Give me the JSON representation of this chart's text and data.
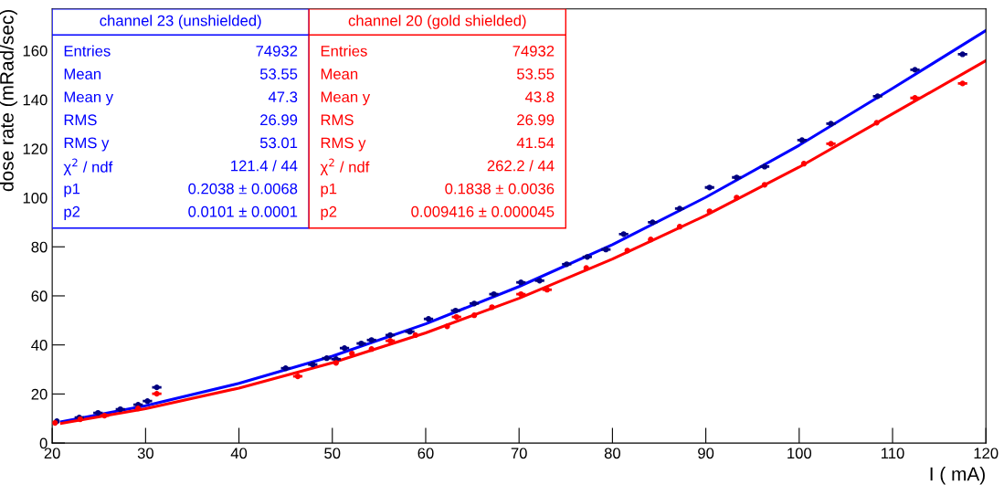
{
  "chart_data": {
    "type": "scatter",
    "xlabel": "I ( mA)",
    "ylabel": "dose rate (mRad/sec)",
    "xlim": [
      20,
      120
    ],
    "ylim": [
      0,
      177
    ],
    "xticks": [
      20,
      30,
      40,
      50,
      60,
      70,
      80,
      90,
      100,
      110,
      120
    ],
    "yticks": [
      0,
      20,
      40,
      60,
      80,
      100,
      120,
      140,
      160
    ],
    "grid": false,
    "legend": false,
    "marker": "circle",
    "series": [
      {
        "color": "#000080",
        "xerrors": [
          null,
          0.5,
          0.5,
          0.5,
          0.5,
          0.5,
          0.5,
          0.5,
          0.5,
          0.5,
          0.5,
          0.5,
          0.5,
          0.5,
          0.5,
          0.5,
          0.5,
          0.5,
          0.5,
          0.5,
          0.5,
          0.5,
          0.5,
          0.5,
          0.5,
          0.5,
          0.5,
          0.5,
          0.5,
          0.5,
          0.5,
          0.5,
          0.5,
          0.5,
          0.5,
          0.5
        ],
        "x": [
          20.5,
          22.9,
          24.9,
          27.3,
          29.2,
          30.2,
          31.2,
          45,
          47.9,
          49.4,
          50.4,
          51.3,
          53.1,
          54.2,
          56.2,
          58.3,
          60.3,
          63.2,
          65.2,
          67.3,
          70.2,
          72.2,
          75.1,
          77.3,
          79.3,
          81.2,
          84.3,
          87.2,
          90.4,
          93.3,
          96.3,
          100.3,
          103.4,
          108.4,
          112.4,
          117.5
        ],
        "values": [
          8.9,
          10.4,
          12.3,
          13.8,
          15.6,
          17.1,
          22.7,
          30.5,
          32.0,
          34.6,
          34.2,
          38.7,
          40.6,
          42.0,
          44.0,
          45.4,
          50.6,
          54.0,
          56.9,
          60.7,
          65.5,
          66.2,
          72.9,
          75.9,
          78.9,
          85.2,
          90.0,
          95.6,
          104.2,
          108.3,
          112.7,
          123.5,
          130.2,
          141.4,
          152.2,
          158.5
        ]
      },
      {
        "color": "#ff0000",
        "xerrors": [
          null,
          null,
          0.5,
          null,
          0.5,
          0.5,
          null,
          null,
          null,
          0.5,
          null,
          null,
          0.5,
          null,
          null,
          0.5,
          0.5,
          null,
          null,
          null,
          null,
          null,
          null,
          null,
          null,
          0.5,
          null,
          0.5,
          0.5
        ],
        "x": [
          20.3,
          23,
          25.6,
          29.2,
          31.2,
          46.3,
          50.4,
          52.1,
          54.2,
          56.2,
          58.9,
          62.3,
          63.3,
          65.2,
          67.1,
          70.2,
          73,
          77.2,
          81.6,
          84.1,
          87.2,
          90.4,
          93.3,
          96.3,
          100.5,
          103.4,
          108.3,
          112.4,
          117.5
        ],
        "values": [
          8.2,
          9.7,
          11.2,
          14.1,
          20.1,
          27.2,
          32.7,
          36.5,
          38.3,
          41.7,
          44.0,
          47.6,
          51.4,
          52.1,
          55.4,
          60.7,
          62.5,
          71.4,
          78.5,
          83.0,
          88.2,
          94.5,
          100.1,
          105.3,
          113.9,
          122.0,
          130.6,
          140.7,
          146.6
        ]
      },
      {
        "type": "line",
        "marker": "none",
        "color": "#0000ff",
        "x": [
          21,
          30,
          40,
          50,
          60,
          70,
          80,
          90,
          100,
          110,
          120
        ],
        "values": [
          8.7,
          15.2,
          24.3,
          35.4,
          48.6,
          63.8,
          80.9,
          100.2,
          121.4,
          144.6,
          168.2
        ]
      },
      {
        "type": "line",
        "marker": "none",
        "color": "#ff0000",
        "x": [
          21,
          30,
          40,
          50,
          60,
          70,
          80,
          90,
          100,
          110,
          120
        ],
        "values": [
          8.0,
          14.0,
          22.4,
          32.7,
          44.9,
          59.0,
          75.0,
          92.8,
          112.5,
          134.2,
          155.9
        ]
      }
    ],
    "annotations": [
      "channel 23 (unshielded)",
      "Entries",
      "74932",
      "Mean",
      "53.55",
      "Mean y",
      "47.3",
      "RMS",
      "26.99",
      "RMS y",
      "53.01",
      "χ$^{2}$ / ndf",
      "121.4 / 44",
      "p1",
      "0.2038 ± 0.0068",
      "p2",
      "0.0101 ± 0.0001",
      "channel 20 (gold shielded)",
      "Entries",
      "74932",
      "Mean",
      "53.55",
      "Mean y",
      "43.8",
      "RMS",
      "26.99",
      "RMS y",
      "41.54",
      "χ$^{2}$ / ndf",
      "262.2 / 44",
      "p1",
      "0.1838 ± 0.0036",
      "p2",
      "0.009416 ± 0.000045"
    ]
  }
}
